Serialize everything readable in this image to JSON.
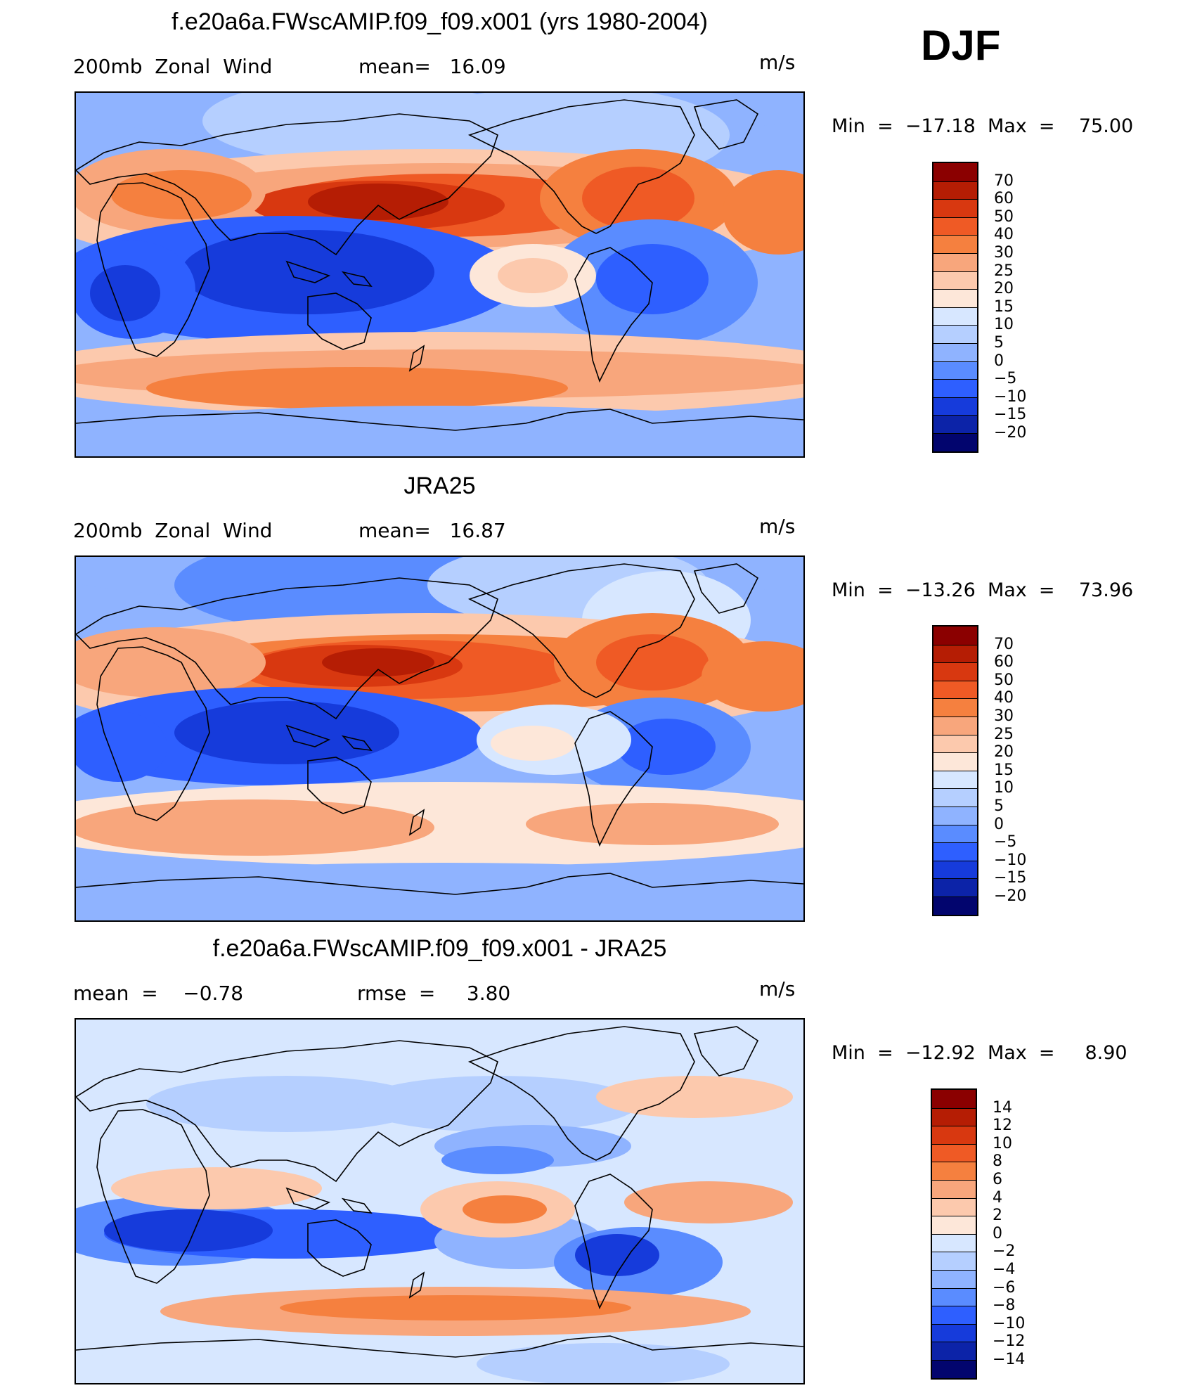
{
  "season": "DJF",
  "panels": [
    {
      "title": "f.e20a6a.FWscAMIP.f09_f09.x001 (yrs 1980-2004)",
      "left_label": "200mb  Zonal  Wind",
      "mid_label": "mean=   16.09",
      "units": "m/s",
      "minmax": "Min  =  −17.18  Max  =    75.00",
      "top": 130
    },
    {
      "title": "JRA25",
      "left_label": "200mb  Zonal  Wind",
      "mid_label": "mean=   16.87",
      "units": "m/s",
      "minmax": "Min  =  −13.26  Max  =    73.96",
      "top": 790
    },
    {
      "title": "f.e20a6a.FWscAMIP.f09_f09.x001 - JRA25",
      "left_label": "mean  =    −0.78",
      "mid_label": "rmse  =     3.80",
      "units": "m/s",
      "minmax": "Min  =  −12.92  Max  =     8.90",
      "top": 1448
    }
  ],
  "chart_data": [
    {
      "type": "heatmap",
      "title": "f.e20a6a.FWscAMIP.f09_f09.x001 (yrs 1980-2004)",
      "field": "200mb Zonal Wind",
      "units": "m/s",
      "mean": 16.09,
      "min": -17.18,
      "max": 75.0,
      "colorbar_levels": [
        70,
        60,
        50,
        40,
        30,
        25,
        20,
        15,
        10,
        5,
        0,
        -5,
        -10,
        -15,
        -20
      ],
      "colorbar_colors": [
        "#8b0000",
        "#b51d04",
        "#d83810",
        "#ef5a25",
        "#f5803f",
        "#f8a67c",
        "#fcc9ad",
        "#fde7d9",
        "#d7e7ff",
        "#b5cfff",
        "#8fb3ff",
        "#5a8cff",
        "#2e5fff",
        "#163bdb",
        "#0c23a8",
        "#02056e"
      ]
    },
    {
      "type": "heatmap",
      "title": "JRA25",
      "field": "200mb Zonal Wind",
      "units": "m/s",
      "mean": 16.87,
      "min": -13.26,
      "max": 73.96,
      "colorbar_levels": [
        70,
        60,
        50,
        40,
        30,
        25,
        20,
        15,
        10,
        5,
        0,
        -5,
        -10,
        -15,
        -20
      ],
      "colorbar_colors": [
        "#8b0000",
        "#b51d04",
        "#d83810",
        "#ef5a25",
        "#f5803f",
        "#f8a67c",
        "#fcc9ad",
        "#fde7d9",
        "#d7e7ff",
        "#b5cfff",
        "#8fb3ff",
        "#5a8cff",
        "#2e5fff",
        "#163bdb",
        "#0c23a8",
        "#02056e"
      ]
    },
    {
      "type": "heatmap",
      "title": "f.e20a6a.FWscAMIP.f09_f09.x001 - JRA25",
      "units": "m/s",
      "mean": -0.78,
      "rmse": 3.8,
      "min": -12.92,
      "max": 8.9,
      "colorbar_levels": [
        14,
        12,
        10,
        8,
        6,
        4,
        2,
        0,
        -2,
        -4,
        -6,
        -8,
        -10,
        -12,
        -14
      ],
      "colorbar_colors": [
        "#8b0000",
        "#b51d04",
        "#d83810",
        "#ef5a25",
        "#f5803f",
        "#f8a67c",
        "#fcc9ad",
        "#fde7d9",
        "#d7e7ff",
        "#b5cfff",
        "#8fb3ff",
        "#5a8cff",
        "#2e5fff",
        "#163bdb",
        "#0c23a8",
        "#02056e"
      ]
    }
  ]
}
